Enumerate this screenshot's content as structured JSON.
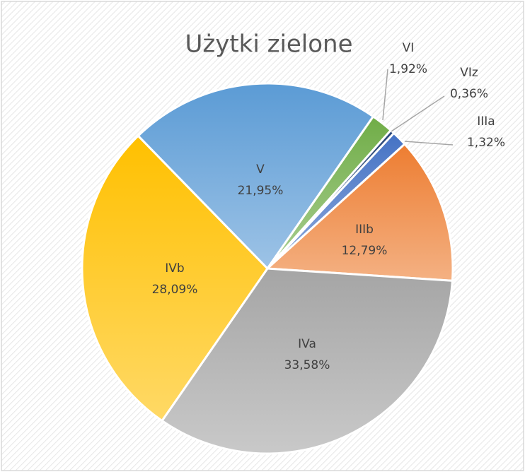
{
  "chart_data": {
    "type": "pie",
    "title": "Użytki zielone",
    "categories": [
      "IIIa",
      "IIIb",
      "IVa",
      "IVb",
      "V",
      "VI",
      "VIz"
    ],
    "values": [
      1.32,
      12.79,
      33.58,
      28.09,
      21.95,
      1.92,
      0.36
    ],
    "value_labels": [
      "1,32%",
      "12,79%",
      "33,58%",
      "28,09%",
      "21,95%",
      "1,92%",
      "0,36%"
    ],
    "colors": [
      "#4472c4",
      "#ed7d31",
      "#a5a5a5",
      "#ffc000",
      "#5b9bd5",
      "#70ad47",
      "#264478"
    ],
    "start_angle": 43
  }
}
